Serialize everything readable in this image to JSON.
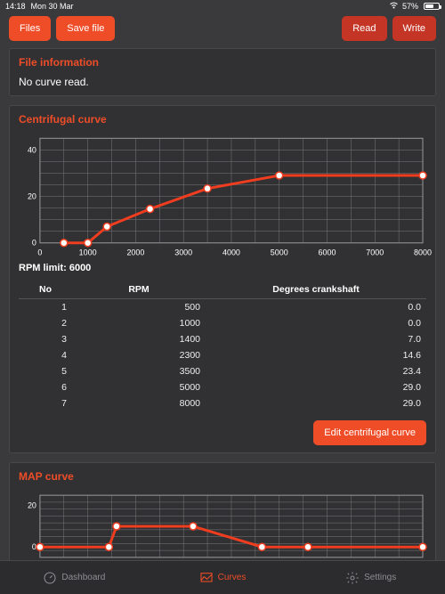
{
  "status": {
    "time": "14:18",
    "date": "Mon 30 Mar",
    "battery_pct": "57%",
    "wifi_icon": "wifi"
  },
  "toolbar": {
    "files": "Files",
    "save_file": "Save file",
    "read": "Read",
    "write": "Write"
  },
  "file_info": {
    "title": "File information",
    "text": "No curve read."
  },
  "centrifugal": {
    "title": "Centrifugal curve",
    "rpm_limit_label": "RPM limit: 6000",
    "edit_label": "Edit centrifugal curve",
    "chart": {
      "type": "line",
      "xlim": [
        0,
        8000
      ],
      "ylim": [
        0,
        45
      ],
      "xtick_step": 1000,
      "ytick_step": 20,
      "xticklabels": [
        "0",
        "1000",
        "2000",
        "3000",
        "4000",
        "5000",
        "6000",
        "7000",
        "8000"
      ],
      "yticklabels": [
        "0",
        "20",
        "40"
      ],
      "line_color": "#f03c1f",
      "point_fill": "#ffffff",
      "grid_color": "#7a7a7d",
      "border_color": "#9a9a9d",
      "bg_color": "#313133",
      "axis_label_color": "#ffffff",
      "axis_label_fontsize": 9,
      "line_width": 3,
      "point_radius": 4,
      "points": [
        {
          "x": 500,
          "y": 0.0
        },
        {
          "x": 1000,
          "y": 0.0
        },
        {
          "x": 1400,
          "y": 7.0
        },
        {
          "x": 2300,
          "y": 14.6
        },
        {
          "x": 3500,
          "y": 23.4
        },
        {
          "x": 5000,
          "y": 29.0
        },
        {
          "x": 8000,
          "y": 29.0
        }
      ]
    },
    "table": {
      "columns": [
        "No",
        "RPM",
        "Degrees crankshaft"
      ],
      "rows": [
        [
          "1",
          "500",
          "0.0"
        ],
        [
          "2",
          "1000",
          "0.0"
        ],
        [
          "3",
          "1400",
          "7.0"
        ],
        [
          "4",
          "2300",
          "14.6"
        ],
        [
          "5",
          "3500",
          "23.4"
        ],
        [
          "6",
          "5000",
          "29.0"
        ],
        [
          "7",
          "8000",
          "29.0"
        ]
      ]
    }
  },
  "map": {
    "title": "MAP curve",
    "chart": {
      "type": "line",
      "xlim": [
        0,
        100
      ],
      "ylim": [
        -5,
        25
      ],
      "ytick_step": 20,
      "yticklabels": [
        "0",
        "20"
      ],
      "line_color": "#f03c1f",
      "point_fill": "#ffffff",
      "grid_color": "#7a7a7d",
      "border_color": "#9a9a9d",
      "bg_color": "#313133",
      "line_width": 3,
      "point_radius": 4,
      "points": [
        {
          "x": 0,
          "y": 0
        },
        {
          "x": 18,
          "y": 0
        },
        {
          "x": 20,
          "y": 10
        },
        {
          "x": 40,
          "y": 10
        },
        {
          "x": 58,
          "y": 0
        },
        {
          "x": 70,
          "y": 0
        },
        {
          "x": 100,
          "y": 0
        }
      ]
    }
  },
  "tabs": {
    "dashboard": "Dashboard",
    "curves": "Curves",
    "settings": "Settings",
    "active": "curves"
  },
  "colors": {
    "accent": "#ee4d28",
    "accent_dark": "#c53526",
    "panel_bg": "#313133",
    "page_bg": "#3a3a3c",
    "border": "#48484a",
    "tabbar_bg": "#2c2c2e",
    "inactive": "#8e8e93"
  }
}
